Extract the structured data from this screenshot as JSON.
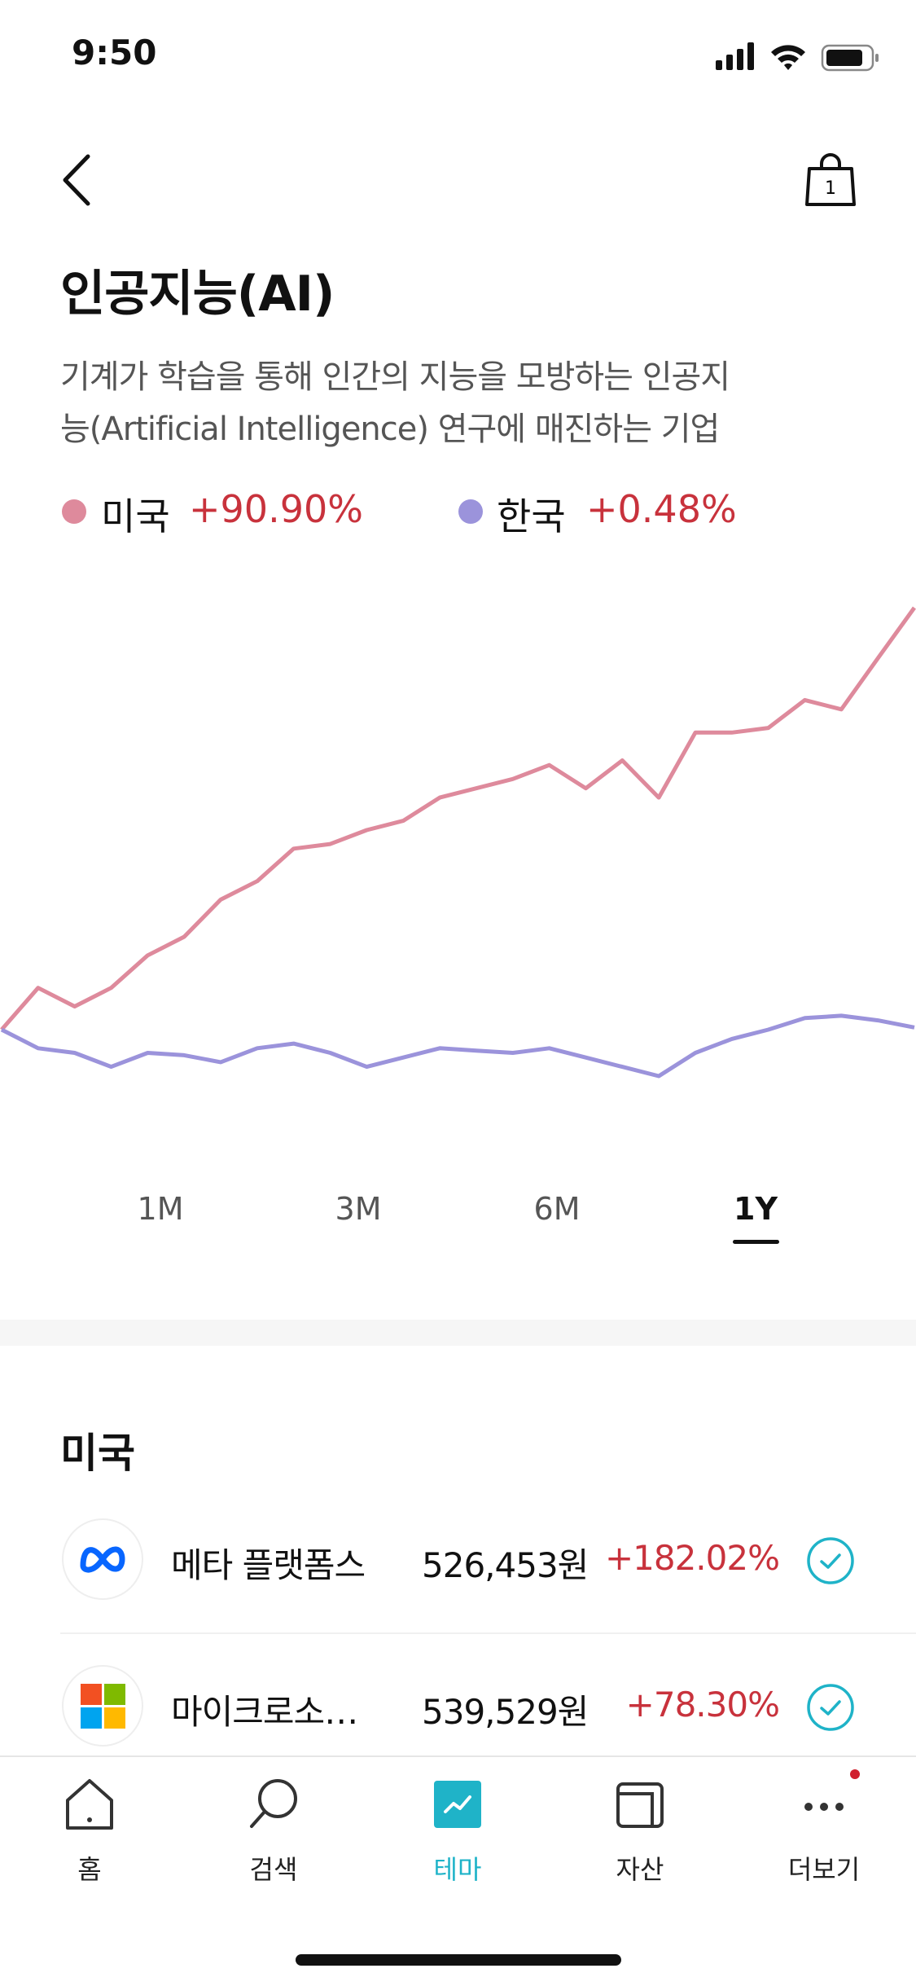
{
  "status": {
    "time": "9:50"
  },
  "header": {
    "cart_count": "1"
  },
  "chart_data": {
    "type": "line",
    "title": "인공지능(AI)",
    "description": [
      "기계가 학습을 통해 인간의 지능을 모방하는 인공지",
      "능(Artificial Intelligence) 연구에 매진하는 기업"
    ],
    "series": [
      {
        "name": "미국",
        "color": "#de8a9c",
        "change_label": "+90.90%",
        "values": [
          0,
          9,
          5,
          9,
          16,
          20,
          28,
          32,
          39,
          40,
          43,
          45,
          50,
          52,
          54,
          57,
          52,
          58,
          50,
          64,
          64,
          65,
          71,
          69,
          80,
          90.9
        ]
      },
      {
        "name": "한국",
        "color": "#9b93db",
        "change_label": "+0.48%",
        "values": [
          0,
          -4,
          -5,
          -8,
          -5,
          -5.5,
          -7,
          -4,
          -3,
          -5,
          -8,
          -6,
          -4,
          -4.5,
          -5,
          -4,
          -6,
          -8,
          -10,
          -5,
          -2,
          0,
          2.5,
          3,
          2,
          0.48
        ]
      }
    ],
    "periods": [
      "1M",
      "3M",
      "6M",
      "1Y"
    ]
  },
  "stocks": {
    "section": "미국",
    "rows": [
      {
        "name": "메타 플랫폼스",
        "price": "526,453원",
        "change": "+182.02%"
      },
      {
        "name": "마이크로소…",
        "price": "539,529원",
        "change": "+78.30%"
      }
    ]
  },
  "tabs": [
    "홈",
    "검색",
    "테마",
    "자산",
    "더보기"
  ]
}
